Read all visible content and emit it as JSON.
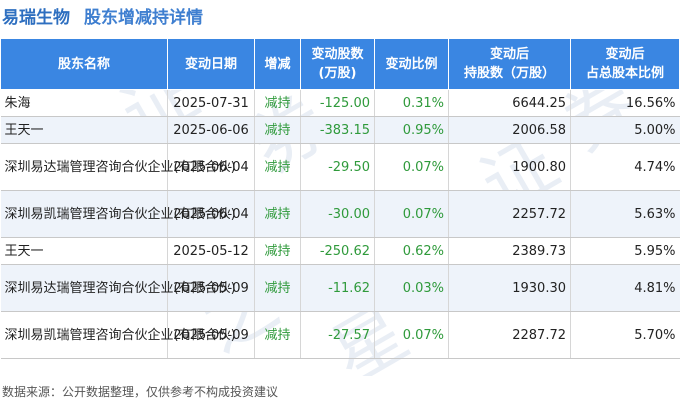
{
  "header": {
    "company": "易瑞生物",
    "subtitle": "股东增减持详情"
  },
  "watermark": {
    "chars": [
      "证",
      "券",
      "之",
      "星",
      "证",
      "券"
    ]
  },
  "table": {
    "columns": [
      {
        "key": "name",
        "label": "股东名称"
      },
      {
        "key": "date",
        "label": "变动日期"
      },
      {
        "key": "direction",
        "label": "增减"
      },
      {
        "key": "change_shares",
        "label_lines": [
          "变动股数",
          "(万股)"
        ]
      },
      {
        "key": "change_ratio",
        "label": "变动比例"
      },
      {
        "key": "holding_after",
        "label_lines": [
          "变动后",
          "持股数（万股）"
        ]
      },
      {
        "key": "ratio_after",
        "label_lines": [
          "变动后",
          "占总股本比例"
        ]
      }
    ],
    "rows": [
      {
        "name": "朱海",
        "date": "2025-07-31",
        "direction": "减持",
        "change_shares": "-125.00",
        "change_ratio": "0.31%",
        "holding_after": "6644.25",
        "ratio_after": "16.56%"
      },
      {
        "name": "王天一",
        "date": "2025-06-06",
        "direction": "减持",
        "change_shares": "-383.15",
        "change_ratio": "0.95%",
        "holding_after": "2006.58",
        "ratio_after": "5.00%"
      },
      {
        "name": "深圳易达瑞管理咨询合伙企业(有限合伙)",
        "date": "2025-06-04",
        "direction": "减持",
        "change_shares": "-29.50",
        "change_ratio": "0.07%",
        "holding_after": "1900.80",
        "ratio_after": "4.74%"
      },
      {
        "name": "深圳易凯瑞管理咨询合伙企业(有限合伙)",
        "date": "2025-06-04",
        "direction": "减持",
        "change_shares": "-30.00",
        "change_ratio": "0.07%",
        "holding_after": "2257.72",
        "ratio_after": "5.63%"
      },
      {
        "name": "王天一",
        "date": "2025-05-12",
        "direction": "减持",
        "change_shares": "-250.62",
        "change_ratio": "0.62%",
        "holding_after": "2389.73",
        "ratio_after": "5.95%"
      },
      {
        "name": "深圳易达瑞管理咨询合伙企业(有限合伙)",
        "date": "2025-05-09",
        "direction": "减持",
        "change_shares": "-11.62",
        "change_ratio": "0.03%",
        "holding_after": "1930.30",
        "ratio_after": "4.81%"
      },
      {
        "name": "深圳易凯瑞管理咨询合伙企业(有限合伙)",
        "date": "2025-05-09",
        "direction": "减持",
        "change_shares": "-27.57",
        "change_ratio": "0.07%",
        "holding_after": "2287.72",
        "ratio_after": "5.70%"
      }
    ]
  },
  "footer": {
    "source_text": "数据来源：公开数据整理，仅供参考不构成投资建议"
  },
  "colors": {
    "header_bg": "#3a86e2",
    "title": "#2e6fc0",
    "decrease_green": "#2f9a3b",
    "alt_row": "#eef3fa"
  }
}
